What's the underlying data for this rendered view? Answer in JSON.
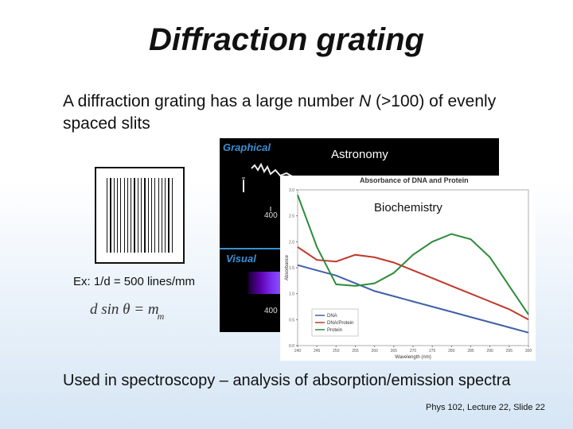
{
  "slide": {
    "title": "Diffraction grating",
    "intro_before": "A diffraction grating has a large number ",
    "intro_var": "N",
    "intro_after": " (>100) of evenly spaced slits",
    "lines_label": "Ex: 1/d = 500 lines/mm",
    "formula_main": "d sin θ = m",
    "formula_sub": "m",
    "bottom_text": "Used in spectroscopy – analysis of absorption/emission spectra",
    "footer": "Phys 102, Lecture 22, Slide 22"
  },
  "astronomy": {
    "label": "Astronomy",
    "graphical": "Graphical",
    "visual": "Visual",
    "tick1": "400",
    "tick2": "400"
  },
  "biochemistry": {
    "label": "Biochemistry",
    "chart_title": "Absorbance of DNA and Protein"
  },
  "chart_data": {
    "type": "line",
    "title": "Absorbance of DNA and Protein",
    "xlabel": "Wavelength (nm)",
    "ylabel": "Absorbance",
    "xlim": [
      240,
      300
    ],
    "ylim": [
      0.0,
      3.0
    ],
    "x_ticks": [
      240,
      245,
      250,
      255,
      260,
      265,
      270,
      275,
      280,
      285,
      290,
      295,
      300
    ],
    "y_ticks": [
      0.0,
      0.5,
      1.0,
      1.5,
      2.0,
      2.5,
      3.0
    ],
    "legend": "bottom-left",
    "x": [
      240,
      245,
      250,
      255,
      260,
      265,
      270,
      275,
      280,
      285,
      290,
      295,
      300
    ],
    "series": [
      {
        "name": "DNA",
        "color": "#3f5fa8",
        "values": [
          1.55,
          1.45,
          1.35,
          1.2,
          1.05,
          0.95,
          0.85,
          0.75,
          0.65,
          0.55,
          0.45,
          0.35,
          0.25
        ]
      },
      {
        "name": "DNA/Protein",
        "color": "#c0392b",
        "values": [
          1.9,
          1.65,
          1.62,
          1.75,
          1.7,
          1.6,
          1.45,
          1.3,
          1.15,
          1.0,
          0.85,
          0.7,
          0.5
        ]
      },
      {
        "name": "Protein",
        "color": "#2e8b3a",
        "values": [
          2.9,
          1.9,
          1.18,
          1.15,
          1.2,
          1.4,
          1.75,
          2.0,
          2.15,
          2.05,
          1.7,
          1.15,
          0.6
        ]
      }
    ]
  }
}
